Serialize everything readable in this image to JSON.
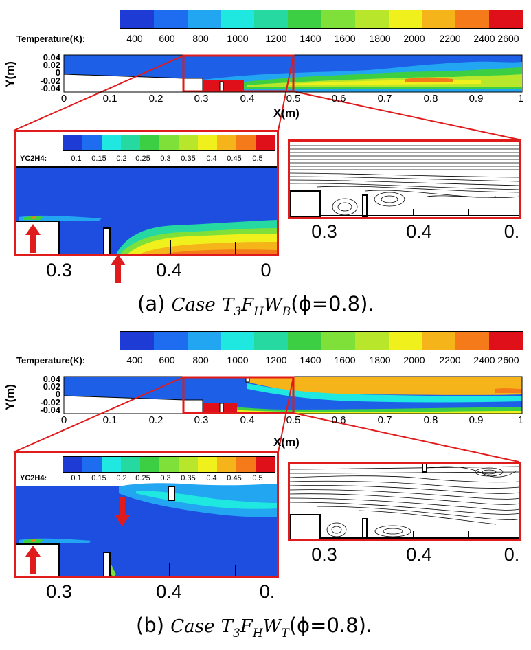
{
  "panels": [
    {
      "id": "a",
      "temperature_label": "Temperature(K):",
      "temperature_ticks": [
        "400",
        "600",
        "800",
        "1000",
        "1200",
        "1400",
        "1600",
        "1800",
        "2000",
        "2200",
        "2400",
        "2600"
      ],
      "y_label": "Y(m)",
      "y_ticks": [
        "0.04",
        "0.02",
        "0",
        "-0.02",
        "-0.04"
      ],
      "x_label": "X(m)",
      "x_ticks": [
        "0",
        "0.1",
        "0.2",
        "0.3",
        "0.4",
        "0.5",
        "0.6",
        "0.7",
        "0.8",
        "0.9",
        "1"
      ],
      "species_label": "YC2H4:",
      "species_ticks": [
        "0.1",
        "0.15",
        "0.2",
        "0.25",
        "0.3",
        "0.35",
        "0.4",
        "0.45",
        "0.5"
      ],
      "zoom_left_ticks": [
        "0.3",
        "0.4",
        "0"
      ],
      "zoom_right_ticks": [
        "0.3",
        "0.4",
        "0."
      ],
      "caption_prefix": "(a)",
      "caption_case": "Case",
      "caption_T": "T",
      "caption_T_sub": "3",
      "caption_F": "F",
      "caption_F_sub": "H",
      "caption_W": "W",
      "caption_W_sub": "B",
      "caption_phi": "(ϕ=0.8)."
    },
    {
      "id": "b",
      "temperature_label": "Temperature(K):",
      "temperature_ticks": [
        "400",
        "600",
        "800",
        "1000",
        "1200",
        "1400",
        "1600",
        "1800",
        "2000",
        "2200",
        "2400",
        "2600"
      ],
      "y_label": "Y(m)",
      "y_ticks": [
        "0.04",
        "0.02",
        "0",
        "-0.02",
        "-0.04"
      ],
      "x_label": "X(m)",
      "x_ticks": [
        "0",
        "0.1",
        "0.2",
        "0.3",
        "0.4",
        "0.5",
        "0.6",
        "0.7",
        "0.8",
        "0.9",
        "1"
      ],
      "species_label": "YC2H4:",
      "species_ticks": [
        "0.1",
        "0.15",
        "0.2",
        "0.25",
        "0.3",
        "0.35",
        "0.4",
        "0.45",
        "0.5"
      ],
      "zoom_left_ticks": [
        "0.3",
        "0.4",
        "0."
      ],
      "zoom_right_ticks": [
        "0.3",
        "0.4",
        "0."
      ],
      "caption_prefix": "(b)",
      "caption_case": "Case",
      "caption_T": "T",
      "caption_T_sub": "3",
      "caption_F": "F",
      "caption_F_sub": "H",
      "caption_W": "W",
      "caption_W_sub": "T",
      "caption_phi": "(ϕ=0.8)."
    }
  ],
  "colors": {
    "temperature_scale": [
      "#1f3bd6",
      "#1e6cf0",
      "#23a6f2",
      "#1fe8e0",
      "#25d9a0",
      "#3ccf43",
      "#7fe03a",
      "#b8e62b",
      "#f0f01c",
      "#f5b41a",
      "#f47a1a",
      "#f0341a",
      "#e0101a"
    ],
    "species_scale": [
      "#1f3bd6",
      "#1e6cf0",
      "#1fe8e0",
      "#25d9a0",
      "#3ccf43",
      "#7fe03a",
      "#b8e62b",
      "#f0f01c",
      "#f5b41a",
      "#f47a1a",
      "#e0101a"
    ],
    "highlight_box": "#e01b1b",
    "arrow": "#e01b1b",
    "background_field": "#1e4ee0"
  }
}
